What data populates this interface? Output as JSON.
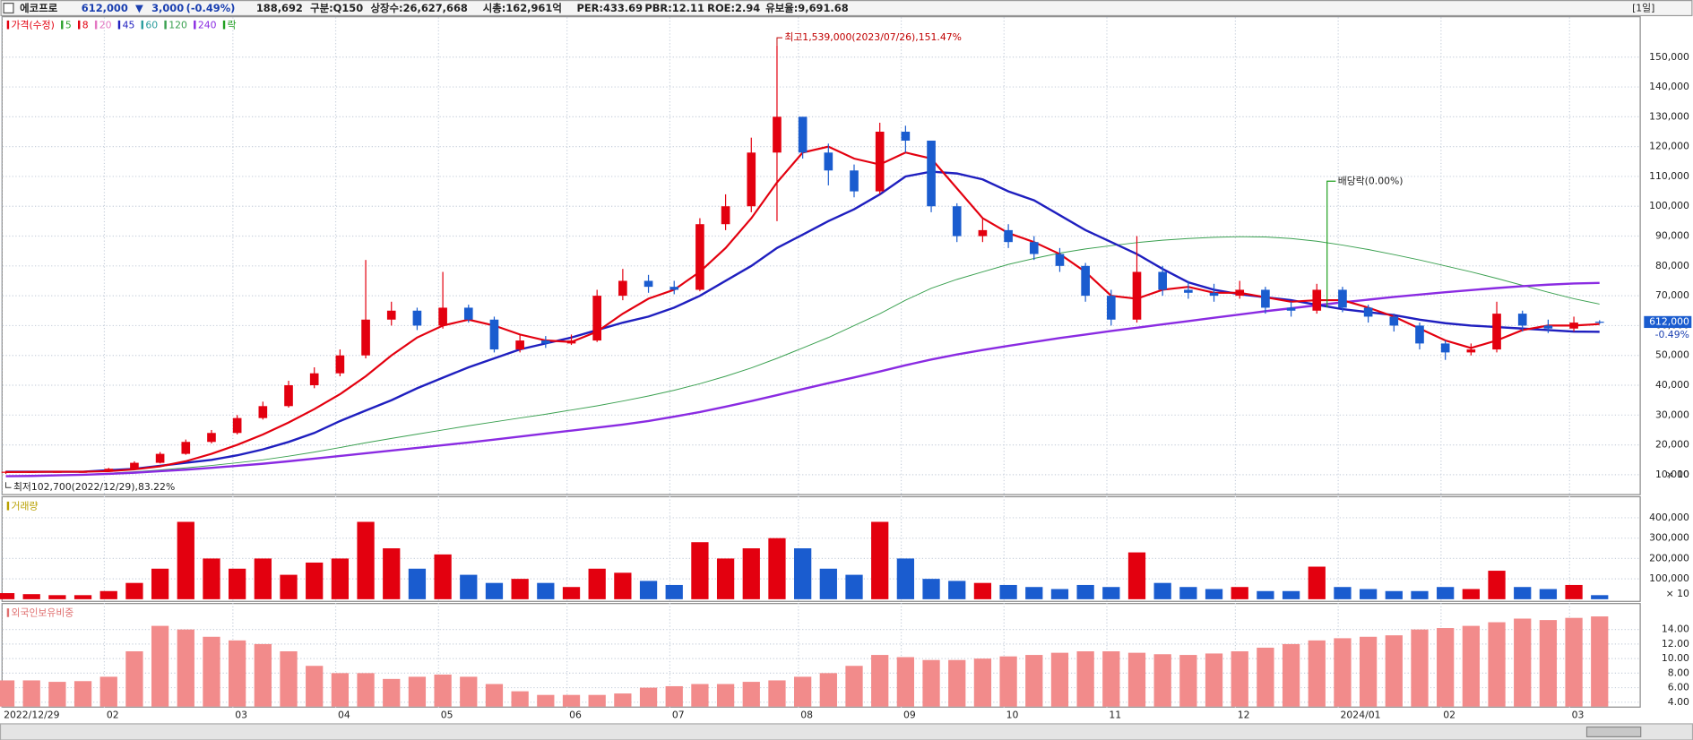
{
  "header": {
    "name": "에코프로",
    "price": "612,000",
    "arrow": "▼",
    "change": "3,000",
    "change_pct": "(-0.49%)",
    "volume": "188,692",
    "fields": [
      "구분:Q150",
      "상장수:26,627,668",
      "시총:162,961억",
      "PER:433.69",
      "PBR:12.11",
      "ROE:2.94",
      "유보율:9,691.68"
    ],
    "period": "[1일]"
  },
  "chart_data": {
    "type": "candlestick",
    "categories": [
      "2022/12/29",
      null,
      null,
      null,
      "02",
      null,
      null,
      null,
      null,
      "03",
      null,
      null,
      null,
      "04",
      null,
      null,
      null,
      "05",
      null,
      null,
      null,
      null,
      "06",
      null,
      null,
      null,
      "07",
      null,
      null,
      null,
      null,
      "08",
      null,
      null,
      null,
      "09",
      null,
      null,
      null,
      "10",
      null,
      null,
      null,
      "11",
      null,
      null,
      null,
      null,
      "12",
      null,
      null,
      null,
      "2024/01",
      null,
      null,
      null,
      "02",
      null,
      null,
      null,
      null,
      "03",
      null
    ],
    "open": [
      10800,
      11000,
      11000,
      11000,
      11000,
      12000,
      14000,
      17000,
      21000,
      24000,
      29000,
      33000,
      40000,
      44000,
      50000,
      62000,
      65000,
      60000,
      66000,
      62000,
      52000,
      55000,
      54000,
      55000,
      70000,
      75000,
      73000,
      72000,
      94000,
      100000,
      118000,
      130000,
      118000,
      112000,
      105000,
      125000,
      122000,
      100000,
      90000,
      92000,
      88000,
      84000,
      80000,
      70000,
      62000,
      78000,
      72000,
      71000,
      70000,
      72000,
      66000,
      65000,
      72000,
      66000,
      63000,
      60000,
      54000,
      51000,
      52000,
      64000,
      60000,
      59000,
      61300
    ],
    "high": [
      11300,
      11300,
      11200,
      11300,
      12300,
      14500,
      17600,
      21800,
      25000,
      30000,
      34500,
      41500,
      46000,
      52000,
      82000,
      68000,
      66000,
      78000,
      67000,
      63000,
      57000,
      56500,
      57000,
      72000,
      79000,
      77000,
      75000,
      96000,
      104000,
      123000,
      153900,
      129000,
      121000,
      114000,
      128000,
      127000,
      122000,
      101000,
      96000,
      94000,
      90000,
      86000,
      81000,
      72000,
      90000,
      80000,
      75000,
      74000,
      75000,
      73000,
      68000,
      74000,
      73000,
      67000,
      64000,
      61000,
      55000,
      54000,
      68000,
      65000,
      62000,
      63000,
      61800
    ],
    "low": [
      10270,
      10800,
      10800,
      10800,
      10900,
      11800,
      13800,
      16700,
      20500,
      23500,
      28500,
      32500,
      39000,
      43000,
      49000,
      60000,
      58500,
      59000,
      61000,
      51000,
      51000,
      52500,
      53500,
      54500,
      68500,
      71000,
      70500,
      71500,
      92000,
      98000,
      95000,
      116000,
      107000,
      103000,
      104000,
      118000,
      98000,
      88000,
      88000,
      86000,
      82000,
      78000,
      68000,
      60000,
      61000,
      70000,
      69000,
      68000,
      69000,
      64000,
      63000,
      64000,
      64500,
      61000,
      58000,
      52000,
      48500,
      50000,
      51000,
      58000,
      57500,
      58000,
      60500
    ],
    "close": [
      11000,
      11000,
      11000,
      11000,
      12000,
      14000,
      17000,
      21000,
      24000,
      29000,
      33000,
      40000,
      44000,
      50000,
      62000,
      65000,
      60000,
      66000,
      62000,
      52000,
      55000,
      54000,
      55000,
      70000,
      75000,
      73000,
      72000,
      94000,
      100000,
      118000,
      130000,
      118000,
      112000,
      105000,
      125000,
      122000,
      100000,
      90000,
      92000,
      88000,
      84000,
      80000,
      70000,
      62000,
      78000,
      72000,
      71000,
      70000,
      72000,
      66000,
      65000,
      72000,
      66000,
      63000,
      60000,
      54000,
      51000,
      52000,
      64000,
      60000,
      59000,
      61000,
      61200
    ],
    "up_color": "#e3000f",
    "down_color": "#1a5ccf",
    "legend": [
      {
        "name": "가격(수정)",
        "color": "#e3000f"
      },
      {
        "name": "5",
        "color": "#2ca02c"
      },
      {
        "name": "8",
        "color": "#e3000f"
      },
      {
        "name": "20",
        "color": "#e377c2"
      },
      {
        "name": "45",
        "color": "#1f1fbf"
      },
      {
        "name": "60",
        "color": "#2a9d9d"
      },
      {
        "name": "120",
        "color": "#3aa050"
      },
      {
        "name": "240",
        "color": "#8a2be2"
      },
      {
        "name": "락",
        "color": "#20a020"
      }
    ],
    "series": [
      {
        "name": "120",
        "color": "#3aa050",
        "values": [
          9500,
          9700,
          9900,
          10100,
          10500,
          11000,
          11600,
          12300,
          13100,
          14000,
          15000,
          16200,
          17600,
          19100,
          20700,
          22200,
          23600,
          25000,
          26400,
          27700,
          29000,
          30300,
          31700,
          33100,
          34700,
          36400,
          38300,
          40500,
          43000,
          45800,
          49000,
          52500,
          56000,
          60000,
          64000,
          68500,
          72500,
          75500,
          78000,
          80500,
          82500,
          84300,
          85700,
          86800,
          87800,
          88600,
          89200,
          89600,
          89800,
          89700,
          89200,
          88300,
          87000,
          85500,
          83800,
          82000,
          80000,
          78000,
          75800,
          73500,
          71200,
          69000,
          67200
        ]
      },
      {
        "name": "240",
        "color": "#8a2be2",
        "values": [
          9500,
          9600,
          9800,
          10000,
          10300,
          10700,
          11200,
          11700,
          12300,
          13000,
          13700,
          14500,
          15400,
          16300,
          17200,
          18100,
          19000,
          19900,
          20800,
          21800,
          22800,
          23800,
          24800,
          25800,
          26800,
          28000,
          29500,
          31000,
          32800,
          34700,
          36700,
          38700,
          40700,
          42600,
          44600,
          46700,
          48600,
          50300,
          51800,
          53200,
          54500,
          55800,
          57000,
          58200,
          59300,
          60400,
          61500,
          62600,
          63700,
          64800,
          65800,
          66800,
          67800,
          68700,
          69600,
          70400,
          71200,
          71900,
          72600,
          73200,
          73700,
          74100,
          74300
        ]
      },
      {
        "name": "45",
        "color": "#1f1fbf",
        "values": [
          11000,
          11000,
          11000,
          11000,
          11500,
          12000,
          13000,
          14000,
          15000,
          16500,
          18500,
          21000,
          24000,
          28000,
          31500,
          35000,
          39000,
          42500,
          46000,
          49000,
          52000,
          54000,
          56000,
          58500,
          61000,
          63000,
          66000,
          70000,
          75000,
          80000,
          86000,
          90500,
          95000,
          99000,
          104000,
          110000,
          111600,
          111000,
          109000,
          105000,
          102000,
          97000,
          92000,
          88000,
          84000,
          79000,
          74500,
          72000,
          70500,
          69500,
          68500,
          67000,
          65500,
          64500,
          63500,
          62000,
          60800,
          60000,
          59500,
          59000,
          58500,
          58000,
          57900
        ]
      },
      {
        "name": "8",
        "color": "#e3000f",
        "values": [
          10900,
          10950,
          11000,
          11000,
          11200,
          11800,
          12800,
          14500,
          17000,
          20000,
          23500,
          27500,
          32000,
          37000,
          43000,
          50000,
          56000,
          60000,
          62000,
          60000,
          57000,
          55000,
          54500,
          58000,
          64000,
          69000,
          72000,
          78000,
          86000,
          96000,
          108000,
          118000,
          120000,
          116000,
          114000,
          118000,
          116000,
          106000,
          96000,
          91000,
          88000,
          84000,
          78000,
          70000,
          69000,
          72000,
          73000,
          71000,
          71000,
          69500,
          68000,
          68500,
          68500,
          66000,
          63000,
          59000,
          55000,
          52500,
          55000,
          58500,
          60000,
          60000,
          60500
        ]
      }
    ],
    "ylim": [
      7500,
      163000
    ],
    "yticks": [
      {
        "value": 10000,
        "label": "10,000"
      },
      {
        "value": 20000,
        "label": "20,000"
      },
      {
        "value": 30000,
        "label": "30,000"
      },
      {
        "value": 40000,
        "label": "40,000"
      },
      {
        "value": 50000,
        "label": "50,000"
      },
      {
        "value": 60000,
        "label": "60,000"
      },
      {
        "value": 70000,
        "label": "70,000"
      },
      {
        "value": 80000,
        "label": "80,000"
      },
      {
        "value": 90000,
        "label": "90,000"
      },
      {
        "value": 100000,
        "label": "100,000"
      },
      {
        "value": 110000,
        "label": "110,000"
      },
      {
        "value": 120000,
        "label": "120,000"
      },
      {
        "value": 130000,
        "label": "130,000"
      },
      {
        "value": 140000,
        "label": "140,000"
      },
      {
        "value": 150000,
        "label": "150,000"
      }
    ],
    "y_note": "× 10",
    "grid": true,
    "annotations": {
      "high": "최고1,539,000(2023/07/26),151.47%",
      "low": "최저102,700(2022/12/29),83.22%",
      "dividend": "배당락(0.00%)"
    },
    "price_tag": {
      "value": 61200,
      "label": "612,000",
      "change": "-0.49%"
    },
    "panels": [
      {
        "type": "bar",
        "title": "거래량",
        "title_color": "#b8a000",
        "values": [
          30000,
          25000,
          20000,
          20000,
          40000,
          80000,
          150000,
          380000,
          200000,
          150000,
          200000,
          120000,
          180000,
          200000,
          380000,
          250000,
          150000,
          220000,
          120000,
          80000,
          100000,
          80000,
          60000,
          150000,
          130000,
          90000,
          70000,
          280000,
          200000,
          250000,
          300000,
          250000,
          150000,
          120000,
          380000,
          200000,
          100000,
          90000,
          80000,
          70000,
          60000,
          50000,
          70000,
          60000,
          230000,
          80000,
          60000,
          50000,
          60000,
          40000,
          40000,
          160000,
          60000,
          50000,
          40000,
          40000,
          60000,
          50000,
          140000,
          60000,
          50000,
          70000,
          20000
        ],
        "ylim": [
          0,
          490000
        ],
        "yticks": [
          {
            "value": 100000,
            "label": "100,000"
          },
          {
            "value": 200000,
            "label": "200,000"
          },
          {
            "value": 300000,
            "label": "300,000"
          },
          {
            "value": 400000,
            "label": "400,000"
          }
        ],
        "y_note": "× 10"
      },
      {
        "type": "bar",
        "title": "외국인보유비중",
        "title_color": "#e07070",
        "color": "#f28b8b",
        "values": [
          7.0,
          7.0,
          6.8,
          6.9,
          7.5,
          11.0,
          14.5,
          14.0,
          13.0,
          12.5,
          12.0,
          11.0,
          9.0,
          8.0,
          8.0,
          7.2,
          7.5,
          7.8,
          7.5,
          6.5,
          5.5,
          5.0,
          5.0,
          5.0,
          5.2,
          6.0,
          6.2,
          6.5,
          6.5,
          6.8,
          7.0,
          7.5,
          8.0,
          9.0,
          10.5,
          10.2,
          9.8,
          9.8,
          10.0,
          10.3,
          10.5,
          10.8,
          11.0,
          11.0,
          10.8,
          10.6,
          10.5,
          10.7,
          11.0,
          11.5,
          12.0,
          12.5,
          12.8,
          13.0,
          13.2,
          14.0,
          14.2,
          14.5,
          15.0,
          15.5,
          15.3,
          15.6,
          15.8
        ],
        "ylim": [
          3.4,
          17.2
        ],
        "yticks": [
          {
            "value": 4,
            "label": "4.00"
          },
          {
            "value": 6,
            "label": "6.00"
          },
          {
            "value": 8,
            "label": "8.00"
          },
          {
            "value": 10,
            "label": "10.00"
          },
          {
            "value": 12,
            "label": "12.00"
          },
          {
            "value": 14,
            "label": "14.00"
          }
        ]
      }
    ]
  }
}
